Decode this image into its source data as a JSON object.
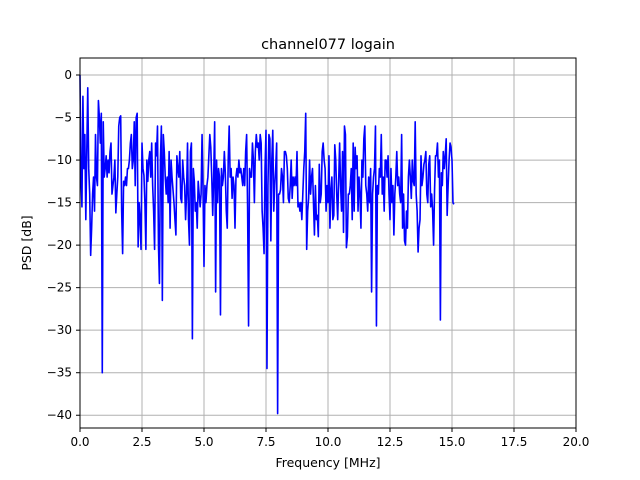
{
  "chart_data": {
    "type": "line",
    "title": "channel077 logain",
    "xlabel": "Frequency [MHz]",
    "ylabel": "PSD [dB]",
    "xlim": [
      0,
      20
    ],
    "ylim": [
      -41.5,
      2
    ],
    "grid": true,
    "x_ticks": [
      0,
      2.5,
      5,
      7.5,
      10,
      12.5,
      15,
      17.5,
      20
    ],
    "x_tick_labels": [
      "0.0",
      "2.5",
      "5.0",
      "7.5",
      "10.0",
      "12.5",
      "15.0",
      "17.5",
      "20.0"
    ],
    "y_ticks": [
      0,
      -5,
      -10,
      -15,
      -20,
      -25,
      -30,
      -35,
      -40
    ],
    "y_tick_labels": [
      "0",
      "−5",
      "−10",
      "−15",
      "−20",
      "−25",
      "−30",
      "−35",
      "−40"
    ],
    "series": [
      {
        "color": "#0000ff",
        "x_start": 0,
        "x_step": 0.0390625,
        "values": [
          0,
          -12,
          -15.5,
          -2.5,
          -11,
          -7,
          -17,
          -9,
          -1.5,
          -11,
          -14,
          -21.2,
          -18,
          -14,
          -12,
          -16,
          -7,
          -12,
          -13,
          -3,
          -5,
          -8,
          -4.5,
          -35,
          -5.5,
          -12,
          -11,
          -9.5,
          -12,
          -10,
          -11.5,
          -9,
          -8,
          -14,
          -13,
          -12,
          -10,
          -16.2,
          -14,
          -12,
          -6,
          -5,
          -4.8,
          -16,
          -21,
          -12.5,
          -13,
          -12,
          -13,
          -11,
          -11,
          -10,
          -8,
          -7,
          -11,
          -10,
          -5.5,
          -13,
          -5,
          -4.5,
          -20.2,
          -15,
          -17,
          -20.5,
          -8,
          -11,
          -11.8,
          -15,
          -20.5,
          -10,
          -12.5,
          -10,
          -9,
          -12,
          -8,
          -13,
          -16,
          -20.5,
          -8,
          -9.5,
          -6,
          -20,
          -24.5,
          -10,
          -6,
          -26.5,
          -7,
          -9,
          -12,
          -14,
          -12,
          -15,
          -9,
          -18,
          -10,
          -12,
          -13.5,
          -15,
          -17,
          -18.8,
          -9.5,
          -11,
          -12,
          -9,
          -14.5,
          -15,
          -10,
          -12,
          -13,
          -17,
          -14,
          -8,
          -17,
          -20,
          -9,
          -8,
          -31,
          -11,
          -12.5,
          -16,
          -15,
          -18,
          -12.5,
          -14,
          -15.5,
          -14,
          -7,
          -13.5,
          -22.5,
          -13,
          -15,
          -13,
          -12,
          -9.5,
          -7,
          -8.5,
          -12,
          -16.5,
          -12,
          -5.5,
          -25.5,
          -10,
          -15,
          -11,
          -12,
          -28.2,
          -11,
          -13,
          -12,
          -9,
          -11.5,
          -16,
          -18,
          -10,
          -6,
          -12,
          -11,
          -14.5,
          -12,
          -13,
          -18,
          -12,
          -11,
          -12,
          -10,
          -11.5,
          -11,
          -12,
          -13,
          -11,
          -13,
          -9,
          -7,
          -15.5,
          -29.5,
          -11,
          -12,
          -12,
          -8,
          -10,
          -15,
          -9,
          -7,
          -8.5,
          -8,
          -10,
          -7,
          -8,
          -16,
          -18,
          -21,
          -11,
          -6.5,
          -34.5,
          -13,
          -7,
          -7.5,
          -19.5,
          -10,
          -6.5,
          -16,
          -13,
          -11,
          -8,
          -39.8,
          -14,
          -14,
          -13.5,
          -11,
          -12,
          -15,
          -9,
          -9,
          -9.5,
          -11,
          -14.5,
          -15,
          -13,
          -10,
          -14.5,
          -12,
          -13,
          -12,
          -13,
          -9,
          -15.5,
          -15,
          -16,
          -15,
          -17,
          -14,
          -11,
          -9,
          -4.5,
          -20.5,
          -16,
          -14.5,
          -10,
          -14,
          -12,
          -11,
          -15,
          -18.8,
          -13,
          -17,
          -16.5,
          -19,
          -10.5,
          -15,
          -14,
          -9,
          -8,
          -10,
          -11,
          -16,
          -13,
          -15,
          -9.5,
          -18,
          -13.5,
          -12,
          -17,
          -16.5,
          -8.2,
          -10,
          -14,
          -17,
          -12.5,
          -8,
          -13,
          -16,
          -9,
          -18.5,
          -6,
          -7,
          -20.3,
          -19,
          -14,
          -14,
          -13,
          -11,
          -17,
          -8,
          -16,
          -8.5,
          -11,
          -9.5,
          -16,
          -12,
          -14,
          -18,
          -10,
          -12,
          -7.5,
          -6,
          -13,
          -14,
          -16,
          -12,
          -15,
          -11,
          -25.5,
          -14,
          -12,
          -11,
          -6,
          -29.5,
          -13,
          -14,
          -11,
          -12,
          -7,
          -14,
          -12,
          -16,
          -10,
          -10,
          -12,
          -9.5,
          -14,
          -17,
          -11,
          -15,
          -13,
          -18.8,
          -14,
          -12,
          -9,
          -13,
          -12,
          -14,
          -15,
          -7,
          -18,
          -14,
          -19.5,
          -20,
          -16,
          -18,
          -12,
          -10,
          -12,
          -14.5,
          -10,
          -12.5,
          -13,
          -5.5,
          -14,
          -16,
          -20.8,
          -18,
          -17,
          -9.5,
          -13,
          -12,
          -10.5,
          -10,
          -9,
          -14,
          -15,
          -10.5,
          -9.5,
          -15.5,
          -14,
          -16,
          -20,
          -13.5,
          -9.5,
          -9.5,
          -8,
          -12,
          -10,
          -28.8,
          -11.5,
          -13,
          -9,
          -11,
          -9.5,
          -7.5,
          -16.5,
          -13,
          -10,
          -8,
          -8.5,
          -10,
          -15,
          -15.2
        ]
      }
    ]
  }
}
